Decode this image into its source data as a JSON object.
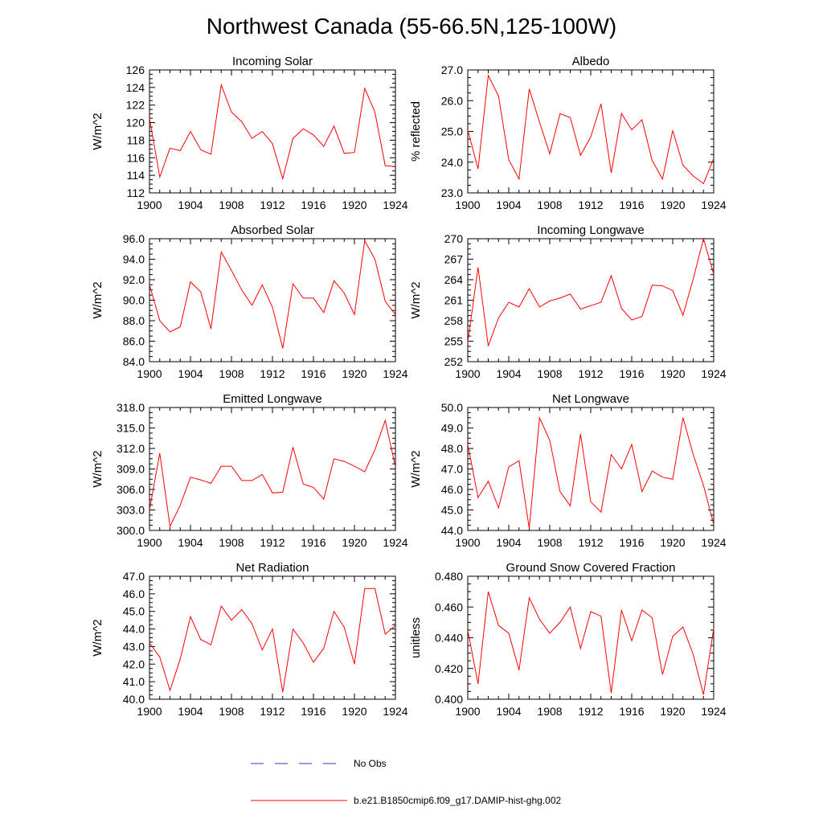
{
  "figure": {
    "title": "Northwest Canada (55-66.5N,125-100W)"
  },
  "legend": [
    {
      "label": "No Obs",
      "color": "#3333cc",
      "style": "dashed"
    },
    {
      "label": "b.e21.B1850cmip6.f09_g17.DAMIP-hist-ghg.002",
      "color": "#ff0000",
      "style": "solid"
    }
  ],
  "chart_data": [
    {
      "type": "line",
      "title": "Incoming Solar",
      "ylabel": "W/m^2",
      "xlim": [
        1900,
        1924
      ],
      "ylim": [
        112,
        126
      ],
      "xticks": [
        1900,
        1904,
        1908,
        1912,
        1916,
        1920,
        1924
      ],
      "xtick_labels": [
        "1900",
        "1904",
        "1908",
        "1912",
        "1916",
        "1920",
        "1924"
      ],
      "yticks": [
        112,
        114,
        116,
        118,
        120,
        122,
        124,
        126
      ],
      "ytick_labels": [
        "112",
        "114",
        "116",
        "118",
        "120",
        "122",
        "124",
        "126"
      ],
      "color": "#ff0000",
      "x": [
        1900,
        1901,
        1902,
        1903,
        1904,
        1905,
        1906,
        1907,
        1908,
        1909,
        1910,
        1911,
        1912,
        1913,
        1914,
        1915,
        1916,
        1917,
        1918,
        1919,
        1920,
        1921,
        1922,
        1923,
        1924
      ],
      "values": [
        120.5,
        113.8,
        117.1,
        116.8,
        119.0,
        116.9,
        116.4,
        124.3,
        121.2,
        120.1,
        118.2,
        119.0,
        117.6,
        113.6,
        118.2,
        119.3,
        118.6,
        117.3,
        119.6,
        116.5,
        116.6,
        123.9,
        121.2,
        115.1,
        115.0
      ]
    },
    {
      "type": "line",
      "title": "Albedo",
      "ylabel": "% reflected",
      "xlim": [
        1900,
        1924
      ],
      "ylim": [
        23.0,
        27.0
      ],
      "xticks": [
        1900,
        1904,
        1908,
        1912,
        1916,
        1920,
        1924
      ],
      "xtick_labels": [
        "1900",
        "1904",
        "1908",
        "1912",
        "1916",
        "1920",
        "1924"
      ],
      "yticks": [
        23.0,
        24.0,
        25.0,
        26.0,
        27.0
      ],
      "ytick_labels": [
        "23.0",
        "24.0",
        "25.0",
        "26.0",
        "27.0"
      ],
      "color": "#ff0000",
      "x": [
        1900,
        1901,
        1902,
        1903,
        1904,
        1905,
        1906,
        1907,
        1908,
        1909,
        1910,
        1911,
        1912,
        1913,
        1914,
        1915,
        1916,
        1917,
        1918,
        1919,
        1920,
        1921,
        1922,
        1923,
        1924
      ],
      "values": [
        25.05,
        23.78,
        26.82,
        26.15,
        24.08,
        23.45,
        26.38,
        25.3,
        24.27,
        25.58,
        25.45,
        24.22,
        24.82,
        25.9,
        23.65,
        25.58,
        25.05,
        25.38,
        24.05,
        23.45,
        25.03,
        23.9,
        23.55,
        23.3,
        24.12
      ]
    },
    {
      "type": "line",
      "title": "Absorbed Solar",
      "ylabel": "W/m^2",
      "xlim": [
        1900,
        1924
      ],
      "ylim": [
        84.0,
        96.0
      ],
      "xticks": [
        1900,
        1904,
        1908,
        1912,
        1916,
        1920,
        1924
      ],
      "xtick_labels": [
        "1900",
        "1904",
        "1908",
        "1912",
        "1916",
        "1920",
        "1924"
      ],
      "yticks": [
        84.0,
        86.0,
        88.0,
        90.0,
        92.0,
        94.0,
        96.0
      ],
      "ytick_labels": [
        "84.0",
        "86.0",
        "88.0",
        "90.0",
        "92.0",
        "94.0",
        "96.0"
      ],
      "color": "#ff0000",
      "x": [
        1900,
        1901,
        1902,
        1903,
        1904,
        1905,
        1906,
        1907,
        1908,
        1909,
        1910,
        1911,
        1912,
        1913,
        1914,
        1915,
        1916,
        1917,
        1918,
        1919,
        1920,
        1921,
        1922,
        1923,
        1924
      ],
      "values": [
        91.5,
        88.0,
        86.9,
        87.4,
        91.8,
        90.8,
        87.2,
        94.7,
        92.9,
        91.0,
        89.5,
        91.5,
        89.3,
        85.3,
        91.6,
        90.2,
        90.2,
        88.8,
        91.9,
        90.7,
        88.6,
        95.8,
        94.0,
        89.9,
        88.6
      ]
    },
    {
      "type": "line",
      "title": "Incoming Longwave",
      "ylabel": "W/m^2",
      "xlim": [
        1900,
        1924
      ],
      "ylim": [
        252,
        270
      ],
      "xticks": [
        1900,
        1904,
        1908,
        1912,
        1916,
        1920,
        1924
      ],
      "xtick_labels": [
        "1900",
        "1904",
        "1908",
        "1912",
        "1916",
        "1920",
        "1924"
      ],
      "yticks": [
        252,
        255,
        258,
        261,
        264,
        267,
        270
      ],
      "ytick_labels": [
        "252",
        "255",
        "258",
        "261",
        "264",
        "267",
        "270"
      ],
      "color": "#ff0000",
      "x": [
        1900,
        1901,
        1902,
        1903,
        1904,
        1905,
        1906,
        1907,
        1908,
        1909,
        1910,
        1911,
        1912,
        1913,
        1914,
        1915,
        1916,
        1917,
        1918,
        1919,
        1920,
        1921,
        1922,
        1923,
        1924
      ],
      "values": [
        254.8,
        265.8,
        254.3,
        258.4,
        260.7,
        260.0,
        262.7,
        260.0,
        260.9,
        261.3,
        261.9,
        259.7,
        260.2,
        260.7,
        264.6,
        259.8,
        258.1,
        258.6,
        263.2,
        263.1,
        262.4,
        258.8,
        264.1,
        270.0,
        264.8
      ]
    },
    {
      "type": "line",
      "title": "Emitted Longwave",
      "ylabel": "W/m^2",
      "xlim": [
        1900,
        1924
      ],
      "ylim": [
        300.0,
        318.0
      ],
      "xticks": [
        1900,
        1904,
        1908,
        1912,
        1916,
        1920,
        1924
      ],
      "xtick_labels": [
        "1900",
        "1904",
        "1908",
        "1912",
        "1916",
        "1920",
        "1924"
      ],
      "yticks": [
        300.0,
        303.0,
        306.0,
        309.0,
        312.0,
        315.0,
        318.0
      ],
      "ytick_labels": [
        "300.0",
        "303.0",
        "306.0",
        "309.0",
        "312.0",
        "315.0",
        "318.0"
      ],
      "color": "#ff0000",
      "x": [
        1900,
        1901,
        1902,
        1903,
        1904,
        1905,
        1906,
        1907,
        1908,
        1909,
        1910,
        1911,
        1912,
        1913,
        1914,
        1915,
        1916,
        1917,
        1918,
        1919,
        1920,
        1921,
        1922,
        1923,
        1924
      ],
      "values": [
        303.0,
        311.3,
        300.6,
        303.7,
        307.8,
        307.4,
        306.9,
        309.4,
        309.4,
        307.3,
        307.3,
        308.2,
        305.5,
        305.6,
        312.2,
        306.8,
        306.3,
        304.6,
        310.5,
        310.1,
        309.4,
        308.6,
        311.8,
        316.1,
        309.3
      ]
    },
    {
      "type": "line",
      "title": "Net Longwave",
      "ylabel": "W/m^2",
      "xlim": [
        1900,
        1924
      ],
      "ylim": [
        44.0,
        50.0
      ],
      "xticks": [
        1900,
        1904,
        1908,
        1912,
        1916,
        1920,
        1924
      ],
      "xtick_labels": [
        "1900",
        "1904",
        "1908",
        "1912",
        "1916",
        "1920",
        "1924"
      ],
      "yticks": [
        44.0,
        45.0,
        46.0,
        47.0,
        48.0,
        49.0,
        50.0
      ],
      "ytick_labels": [
        "44.0",
        "45.0",
        "46.0",
        "47.0",
        "48.0",
        "49.0",
        "50.0"
      ],
      "color": "#ff0000",
      "x": [
        1900,
        1901,
        1902,
        1903,
        1904,
        1905,
        1906,
        1907,
        1908,
        1909,
        1910,
        1911,
        1912,
        1913,
        1914,
        1915,
        1916,
        1917,
        1918,
        1919,
        1920,
        1921,
        1922,
        1923,
        1924
      ],
      "values": [
        48.2,
        45.6,
        46.4,
        45.1,
        47.1,
        47.4,
        44.1,
        49.5,
        48.4,
        45.9,
        45.2,
        48.7,
        45.4,
        44.9,
        47.7,
        47.0,
        48.2,
        45.9,
        46.9,
        46.6,
        46.5,
        49.5,
        47.7,
        46.2,
        44.3
      ]
    },
    {
      "type": "line",
      "title": "Net Radiation",
      "ylabel": "W/m^2",
      "xlim": [
        1900,
        1924
      ],
      "ylim": [
        40.0,
        47.0
      ],
      "xticks": [
        1900,
        1904,
        1908,
        1912,
        1916,
        1920,
        1924
      ],
      "xtick_labels": [
        "1900",
        "1904",
        "1908",
        "1912",
        "1916",
        "1920",
        "1924"
      ],
      "yticks": [
        40.0,
        41.0,
        42.0,
        43.0,
        44.0,
        45.0,
        46.0,
        47.0
      ],
      "ytick_labels": [
        "40.0",
        "41.0",
        "42.0",
        "43.0",
        "44.0",
        "45.0",
        "46.0",
        "47.0"
      ],
      "color": "#ff0000",
      "x": [
        1900,
        1901,
        1902,
        1903,
        1904,
        1905,
        1906,
        1907,
        1908,
        1909,
        1910,
        1911,
        1912,
        1913,
        1914,
        1915,
        1916,
        1917,
        1918,
        1919,
        1920,
        1921,
        1922,
        1923,
        1924
      ],
      "values": [
        43.2,
        42.4,
        40.5,
        42.3,
        44.7,
        43.4,
        43.1,
        45.3,
        44.5,
        45.1,
        44.3,
        42.8,
        44.0,
        40.4,
        44.0,
        43.2,
        42.1,
        42.9,
        45.0,
        44.1,
        42.0,
        46.3,
        46.3,
        43.7,
        44.2
      ]
    },
    {
      "type": "line",
      "title": "Ground Snow Covered Fraction",
      "ylabel": "unitless",
      "xlim": [
        1900,
        1924
      ],
      "ylim": [
        0.4,
        0.48
      ],
      "xticks": [
        1900,
        1904,
        1908,
        1912,
        1916,
        1920,
        1924
      ],
      "xtick_labels": [
        "1900",
        "1904",
        "1908",
        "1912",
        "1916",
        "1920",
        "1924"
      ],
      "yticks": [
        0.4,
        0.42,
        0.44,
        0.46,
        0.48
      ],
      "ytick_labels": [
        "0.400",
        "0.420",
        "0.440",
        "0.460",
        "0.480"
      ],
      "color": "#ff0000",
      "x": [
        1900,
        1901,
        1902,
        1903,
        1904,
        1905,
        1906,
        1907,
        1908,
        1909,
        1910,
        1911,
        1912,
        1913,
        1914,
        1915,
        1916,
        1917,
        1918,
        1919,
        1920,
        1921,
        1922,
        1923,
        1924
      ],
      "values": [
        0.445,
        0.41,
        0.47,
        0.448,
        0.443,
        0.419,
        0.466,
        0.452,
        0.443,
        0.45,
        0.46,
        0.433,
        0.457,
        0.454,
        0.404,
        0.458,
        0.438,
        0.458,
        0.453,
        0.416,
        0.441,
        0.447,
        0.429,
        0.403,
        0.446
      ]
    }
  ]
}
